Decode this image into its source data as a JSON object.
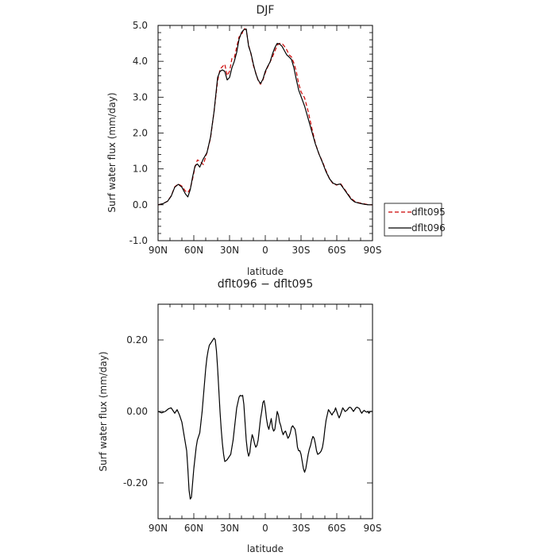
{
  "chart_data": [
    {
      "type": "line",
      "title": "DJF",
      "xlabel": "latitude",
      "ylabel": "Surf water flux (mm/day)",
      "xlim": [
        90,
        -90
      ],
      "ylim": [
        -1.0,
        5.0
      ],
      "xticks": [
        90,
        60,
        30,
        0,
        -30,
        -60,
        -90
      ],
      "xtick_labels": [
        "90N",
        "60N",
        "30N",
        "0",
        "30S",
        "60S",
        "90S"
      ],
      "yticks": [
        -1,
        0,
        1,
        2,
        3,
        4,
        5
      ],
      "ytick_labels": [
        "-1.0",
        "0.0",
        "1.0",
        "2.0",
        "3.0",
        "4.0",
        "5.0"
      ],
      "legend_position": "right",
      "series": [
        {
          "name": "dflt095",
          "color": "#cc0000",
          "style": "dashed",
          "x": [
            90,
            86,
            82,
            79,
            76,
            73,
            70,
            67,
            65,
            63,
            61,
            59,
            57,
            55,
            52,
            49,
            46,
            43,
            40,
            38,
            36,
            34,
            32,
            30,
            28,
            26,
            24,
            22,
            20,
            18,
            16,
            14,
            12,
            10,
            8,
            6,
            4,
            2,
            0,
            -2,
            -4,
            -6,
            -8,
            -10,
            -12,
            -14,
            -16,
            -18,
            -20,
            -22,
            -24,
            -26,
            -28,
            -30,
            -33,
            -36,
            -39,
            -42,
            -45,
            -48,
            -51,
            -54,
            -57,
            -60,
            -63,
            -66,
            -69,
            -72,
            -75,
            -78,
            -81,
            -84,
            -87,
            -90
          ],
          "y": [
            0.0,
            0.03,
            0.1,
            0.25,
            0.5,
            0.58,
            0.52,
            0.38,
            0.34,
            0.45,
            0.72,
            1.05,
            1.25,
            1.22,
            1.12,
            1.45,
            1.85,
            2.6,
            3.45,
            3.78,
            3.85,
            3.92,
            3.6,
            3.72,
            4.08,
            4.1,
            4.4,
            4.68,
            4.72,
            4.92,
            4.88,
            4.45,
            4.2,
            3.88,
            3.68,
            3.46,
            3.36,
            3.48,
            3.68,
            3.84,
            3.98,
            4.12,
            4.28,
            4.45,
            4.5,
            4.5,
            4.42,
            4.32,
            4.18,
            4.12,
            3.95,
            3.72,
            3.38,
            3.15,
            2.98,
            2.6,
            2.15,
            1.72,
            1.42,
            1.2,
            0.95,
            0.72,
            0.58,
            0.55,
            0.6,
            0.46,
            0.32,
            0.18,
            0.1,
            0.06,
            0.04,
            0.02,
            0.0,
            0.0
          ]
        },
        {
          "name": "dflt096",
          "color": "#000000",
          "style": "solid",
          "x": [
            90,
            86,
            82,
            79,
            76,
            73,
            70,
            67,
            65,
            63,
            61,
            59,
            57,
            55,
            52,
            49,
            46,
            43,
            40,
            38,
            36,
            34,
            32,
            30,
            28,
            26,
            24,
            22,
            20,
            18,
            16,
            14,
            12,
            10,
            8,
            6,
            4,
            2,
            0,
            -2,
            -4,
            -6,
            -8,
            -10,
            -12,
            -14,
            -16,
            -18,
            -20,
            -22,
            -24,
            -26,
            -28,
            -30,
            -33,
            -36,
            -39,
            -42,
            -45,
            -48,
            -51,
            -54,
            -57,
            -60,
            -63,
            -66,
            -69,
            -72,
            -75,
            -78,
            -81,
            -84,
            -87,
            -90
          ],
          "y": [
            0.0,
            0.03,
            0.1,
            0.24,
            0.49,
            0.57,
            0.49,
            0.3,
            0.22,
            0.42,
            0.78,
            1.08,
            1.14,
            1.05,
            1.28,
            1.45,
            1.88,
            2.6,
            3.55,
            3.72,
            3.76,
            3.72,
            3.48,
            3.55,
            3.82,
            4.0,
            4.25,
            4.62,
            4.8,
            4.88,
            4.9,
            4.42,
            4.22,
            3.92,
            3.66,
            3.48,
            3.38,
            3.5,
            3.72,
            3.86,
            3.98,
            4.2,
            4.38,
            4.5,
            4.48,
            4.42,
            4.3,
            4.18,
            4.12,
            4.05,
            3.82,
            3.5,
            3.2,
            3.02,
            2.75,
            2.4,
            2.05,
            1.7,
            1.42,
            1.18,
            0.92,
            0.72,
            0.6,
            0.56,
            0.58,
            0.44,
            0.3,
            0.16,
            0.08,
            0.05,
            0.03,
            0.01,
            0.0,
            0.0
          ]
        }
      ]
    },
    {
      "type": "line",
      "title": "dflt096 − dflt095",
      "xlabel": "latitude",
      "ylabel": "Surf water flux (mm/day)",
      "xlim": [
        90,
        -90
      ],
      "ylim": [
        -0.3,
        0.3
      ],
      "xticks": [
        90,
        60,
        30,
        0,
        -30,
        -60,
        -90
      ],
      "xtick_labels": [
        "90N",
        "60N",
        "30N",
        "0",
        "30S",
        "60S",
        "90S"
      ],
      "yticks": [
        -0.2,
        0.0,
        0.2
      ],
      "ytick_labels": [
        "-0.20",
        "0.00",
        "0.20"
      ],
      "series": [
        {
          "color": "#000000",
          "style": "solid",
          "x": [
            90,
            87,
            84,
            81,
            79,
            78,
            76,
            74,
            72,
            70,
            69,
            68,
            67,
            66,
            65,
            64,
            63,
            62,
            61,
            60,
            59,
            58,
            57,
            56,
            55,
            54,
            53,
            52,
            51,
            50,
            49,
            48,
            47,
            46,
            45,
            44,
            43,
            42,
            41,
            40,
            39,
            38,
            37,
            36,
            35,
            34,
            33,
            32,
            31,
            30,
            29,
            28,
            27,
            26,
            25,
            24,
            23,
            22,
            21,
            20,
            19,
            18,
            17,
            16,
            15,
            14,
            13,
            12,
            11,
            10,
            9,
            8,
            7,
            6,
            5,
            4,
            3,
            2,
            1,
            0,
            -1,
            -2,
            -3,
            -4,
            -5,
            -6,
            -7,
            -8,
            -9,
            -10,
            -11,
            -12,
            -13,
            -14,
            -15,
            -16,
            -17,
            -18,
            -19,
            -20,
            -21,
            -22,
            -23,
            -24,
            -25,
            -26,
            -27,
            -28,
            -29,
            -30,
            -31,
            -32,
            -33,
            -34,
            -35,
            -36,
            -37,
            -38,
            -39,
            -40,
            -41,
            -42,
            -43,
            -44,
            -45,
            -46,
            -47,
            -48,
            -49,
            -50,
            -51,
            -52,
            -53,
            -54,
            -55,
            -56,
            -57,
            -58,
            -59,
            -60,
            -61,
            -62,
            -63,
            -64,
            -65,
            -66,
            -67,
            -68,
            -69,
            -70,
            -71,
            -72,
            -73,
            -74,
            -75,
            -76,
            -77,
            -78,
            -79,
            -80,
            -81,
            -82,
            -83,
            -84,
            -85,
            -86,
            -87,
            -88,
            -89,
            -90
          ],
          "y": [
            0.0,
            -0.004,
            0.0,
            0.008,
            0.01,
            0.005,
            -0.005,
            0.005,
            -0.01,
            -0.03,
            -0.05,
            -0.07,
            -0.09,
            -0.11,
            -0.16,
            -0.22,
            -0.245,
            -0.24,
            -0.2,
            -0.16,
            -0.13,
            -0.1,
            -0.08,
            -0.07,
            -0.06,
            -0.03,
            0.0,
            0.04,
            0.08,
            0.12,
            0.15,
            0.17,
            0.185,
            0.19,
            0.195,
            0.2,
            0.205,
            0.2,
            0.17,
            0.12,
            0.06,
            0.0,
            -0.05,
            -0.09,
            -0.12,
            -0.14,
            -0.138,
            -0.135,
            -0.13,
            -0.125,
            -0.12,
            -0.1,
            -0.08,
            -0.05,
            -0.02,
            0.01,
            0.025,
            0.04,
            0.045,
            0.043,
            0.045,
            0.02,
            -0.03,
            -0.08,
            -0.11,
            -0.125,
            -0.115,
            -0.085,
            -0.065,
            -0.075,
            -0.09,
            -0.1,
            -0.095,
            -0.08,
            -0.05,
            -0.02,
            0.0,
            0.025,
            0.03,
            0.01,
            -0.02,
            -0.04,
            -0.05,
            -0.035,
            -0.02,
            -0.045,
            -0.055,
            -0.05,
            -0.025,
            0.0,
            -0.01,
            -0.03,
            -0.04,
            -0.055,
            -0.065,
            -0.058,
            -0.055,
            -0.065,
            -0.075,
            -0.07,
            -0.06,
            -0.045,
            -0.04,
            -0.045,
            -0.05,
            -0.07,
            -0.1,
            -0.11,
            -0.11,
            -0.12,
            -0.14,
            -0.16,
            -0.17,
            -0.16,
            -0.14,
            -0.12,
            -0.105,
            -0.095,
            -0.08,
            -0.07,
            -0.075,
            -0.09,
            -0.11,
            -0.12,
            -0.118,
            -0.115,
            -0.11,
            -0.1,
            -0.08,
            -0.05,
            -0.025,
            -0.01,
            0.005,
            0.0,
            -0.005,
            -0.01,
            -0.003,
            0.0,
            0.01,
            0.0,
            -0.01,
            -0.018,
            -0.01,
            0.0,
            0.01,
            0.005,
            0.0,
            0.002,
            0.005,
            0.01,
            0.012,
            0.01,
            0.005,
            0.0,
            0.005,
            0.01,
            0.012,
            0.01,
            0.008,
            0.0,
            -0.005,
            0.0,
            0.003,
            0.0,
            -0.002,
            0.0,
            -0.005,
            0.0,
            0.0,
            0.0
          ]
        }
      ]
    }
  ]
}
